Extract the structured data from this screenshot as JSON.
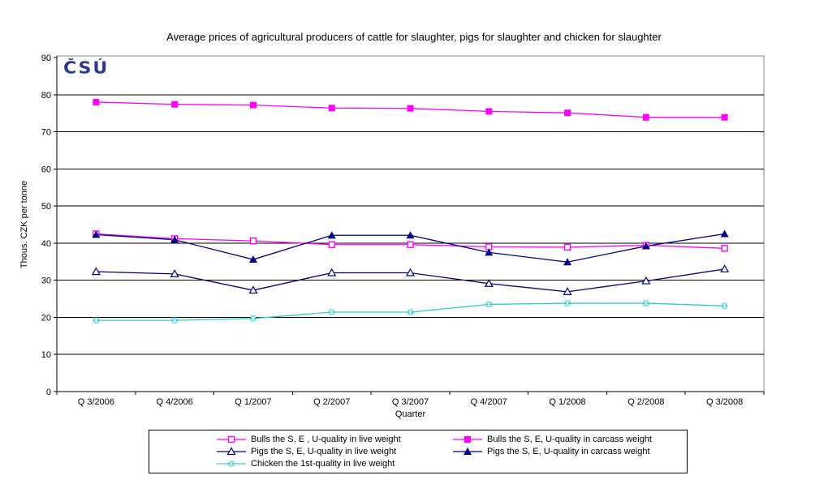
{
  "logo": {
    "text": "ČSÚ",
    "color": "#2B3A8F"
  },
  "chart_data": {
    "type": "line",
    "title": "Average prices of agricultural producers of cattle for slaughter, pigs for slaughter and chicken for slaughter",
    "xlabel": "Quarter",
    "ylabel": "Thous. CZK per tonne",
    "ylim": [
      0,
      90
    ],
    "y_tick_step": 10,
    "grid": "horizontal-black-on-gray-bordered-plot",
    "legend_position": "bottom",
    "categories": [
      "Q 3/2006",
      "Q 4/2006",
      "Q 1/2007",
      "Q 2/2007",
      "Q 3/2007",
      "Q 4/2007",
      "Q 1/2008",
      "Q 2/2008",
      "Q 3/2008"
    ],
    "series": [
      {
        "name": "Bulls the S, E , U-quality in live weight",
        "color": "#FF00FF",
        "marker": "open-square",
        "values": [
          42.5,
          41.2,
          40.6,
          39.6,
          39.6,
          39.0,
          38.9,
          39.4,
          38.6
        ]
      },
      {
        "name": "Bulls the S, E, U-quality in carcass weight",
        "color": "#FF00FF",
        "marker": "filled-square",
        "values": [
          78.0,
          77.4,
          77.2,
          76.4,
          76.3,
          75.5,
          75.1,
          73.9,
          73.9
        ]
      },
      {
        "name": "Pigs the S, E, U-quality in live weight",
        "color": "#000080",
        "marker": "open-triangle",
        "values": [
          32.3,
          31.7,
          27.3,
          32.0,
          32.0,
          29.1,
          26.9,
          29.8,
          33.0
        ]
      },
      {
        "name": "Pigs the S, E, U-quality in carcass weight",
        "color": "#000080",
        "marker": "filled-triangle",
        "values": [
          42.3,
          40.9,
          35.6,
          42.1,
          42.1,
          37.5,
          34.9,
          39.2,
          42.5
        ]
      },
      {
        "name": "Chicken the 1st-quality in live weight",
        "color": "#33CCCC",
        "marker": "x-square",
        "values": [
          19.2,
          19.2,
          19.7,
          21.4,
          21.4,
          23.5,
          23.8,
          23.8,
          23.1
        ]
      }
    ]
  }
}
